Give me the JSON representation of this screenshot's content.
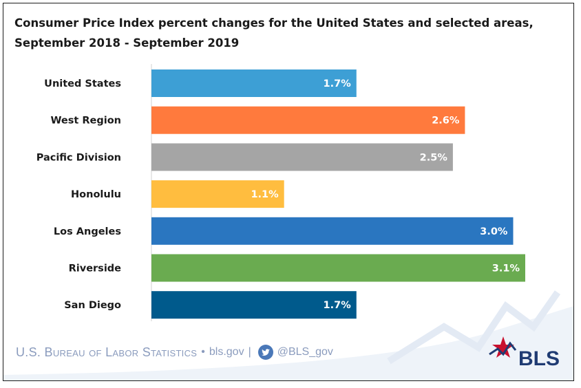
{
  "chart_data": {
    "type": "bar",
    "orientation": "horizontal",
    "title_lines": [
      "Consumer Price Index percent changes for the United States and selected areas,",
      "September 2018 - September 2019"
    ],
    "categories": [
      "United States",
      "West Region",
      "Pacific Division",
      "Honolulu",
      "Los Angeles",
      "Riverside",
      "San Diego"
    ],
    "values": [
      1.7,
      2.6,
      2.5,
      1.1,
      3.0,
      3.1,
      1.7
    ],
    "value_labels": [
      "1.7%",
      "2.6%",
      "2.5%",
      "1.1%",
      "3.0%",
      "3.1%",
      "1.7%"
    ],
    "colors": [
      "#3d9fd5",
      "#ff7a3d",
      "#a5a5a5",
      "#ffbd3f",
      "#2a76c0",
      "#6aab50",
      "#005a8c"
    ],
    "xlim": [
      0,
      3.1
    ],
    "grid": false,
    "legend": "none"
  },
  "footer": {
    "agency": "U.S. Bureau of Labor Statistics",
    "bullet": "•",
    "site": "bls.gov",
    "divider": "|",
    "twitter": "@BLS_gov"
  },
  "logo": {
    "text": "BLS",
    "colors": {
      "red": "#c8102e",
      "blue": "#1f3b73",
      "light": "#dce6f2"
    }
  }
}
